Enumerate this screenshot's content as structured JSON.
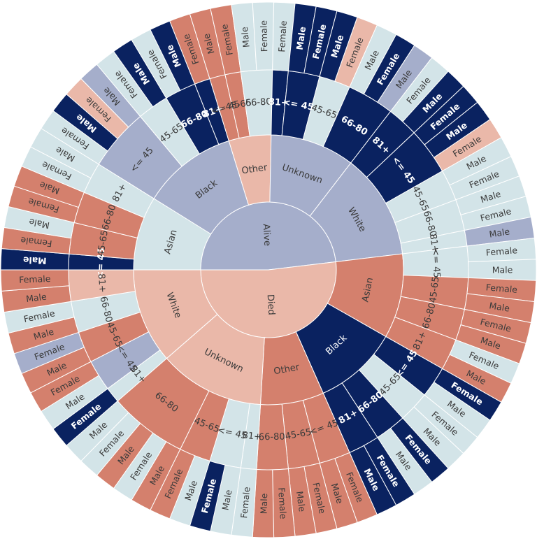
{
  "chart_data": {
    "type": "sunburst",
    "title": "",
    "level_order": [
      "status",
      "race",
      "age",
      "sex"
    ],
    "colors": {
      "navy": "#0a2260",
      "terracotta": "#d4806d",
      "lightblue": "#d3e4e8",
      "lavender": "#a5aecb",
      "peach": "#eab8a9",
      "white": "#ffffff"
    },
    "root": [
      {
        "label": "Alive",
        "color": "lavender",
        "children": [
          {
            "label": "Asian",
            "color": "lightblue",
            "children": [
              {
                "label": "<= 45",
                "color": "navy",
                "children": [
                  {
                    "label": "Male",
                    "value": 1,
                    "color": "navy"
                  }
                ]
              },
              {
                "label": "45-65",
                "color": "terracotta",
                "children": [
                  {
                    "label": "Female",
                    "value": 1,
                    "color": "terracotta"
                  },
                  {
                    "label": "Male",
                    "value": 1,
                    "color": "lightblue"
                  }
                ]
              },
              {
                "label": "66-80",
                "color": "terracotta",
                "children": [
                  {
                    "label": "Female",
                    "value": 1,
                    "color": "terracotta"
                  },
                  {
                    "label": "Male",
                    "value": 1,
                    "color": "terracotta"
                  }
                ]
              },
              {
                "label": "81+",
                "color": "lightblue",
                "children": [
                  {
                    "label": "Female",
                    "value": 1,
                    "color": "lightblue"
                  },
                  {
                    "label": "Male",
                    "value": 1,
                    "color": "lightblue"
                  }
                ]
              }
            ]
          },
          {
            "label": "Black",
            "color": "lavender",
            "children": [
              {
                "label": "<= 45",
                "color": "lavender",
                "children": [
                  {
                    "label": "Female",
                    "value": 1,
                    "color": "lightblue"
                  },
                  {
                    "label": "Male",
                    "value": 1,
                    "color": "navy"
                  },
                  {
                    "label": "Female",
                    "value": 1,
                    "color": "peach"
                  },
                  {
                    "label": "Male",
                    "value": 1,
                    "color": "lavender"
                  }
                ]
              },
              {
                "label": "45-65",
                "color": "lightblue",
                "children": [
                  {
                    "label": "Female",
                    "value": 1,
                    "color": "lightblue"
                  },
                  {
                    "label": "Male",
                    "value": 1,
                    "color": "navy"
                  }
                ]
              },
              {
                "label": "66-80",
                "color": "navy",
                "children": [
                  {
                    "label": "Female",
                    "value": 1,
                    "color": "lightblue"
                  },
                  {
                    "label": "Male",
                    "value": 1,
                    "color": "navy"
                  }
                ]
              },
              {
                "label": "81+",
                "color": "navy",
                "children": [
                  {
                    "label": "Female",
                    "value": 1,
                    "color": "terracotta"
                  }
                ]
              }
            ]
          },
          {
            "label": "Other",
            "color": "peach",
            "children": [
              {
                "label": "<= 45",
                "color": "terracotta",
                "children": [
                  {
                    "label": "Male",
                    "value": 1,
                    "color": "terracotta"
                  }
                ]
              },
              {
                "label": "45-65",
                "color": "terracotta",
                "children": [
                  {
                    "label": "Female",
                    "value": 1,
                    "color": "terracotta"
                  }
                ]
              },
              {
                "label": "66-80",
                "color": "lightblue",
                "children": [
                  {
                    "label": "Male",
                    "value": 1,
                    "color": "lightblue"
                  },
                  {
                    "label": "Female",
                    "value": 1,
                    "color": "lightblue"
                  }
                ]
              }
            ]
          },
          {
            "label": "Unknown",
            "color": "lavender",
            "children": [
              {
                "label": "81+",
                "color": "navy",
                "children": [
                  {
                    "label": "Female",
                    "value": 1,
                    "color": "lightblue"
                  }
                ]
              },
              {
                "label": "<= 45",
                "color": "navy",
                "children": [
                  {
                    "label": "Male",
                    "value": 1,
                    "color": "navy"
                  },
                  {
                    "label": "Female",
                    "value": 1,
                    "color": "navy"
                  }
                ]
              },
              {
                "label": "45-65",
                "color": "lightblue",
                "children": [
                  {
                    "label": "Male",
                    "value": 1,
                    "color": "navy"
                  },
                  {
                    "label": "Female",
                    "value": 1,
                    "color": "peach"
                  }
                ]
              },
              {
                "label": "66-80",
                "color": "navy",
                "children": [
                  {
                    "label": "Male",
                    "value": 1,
                    "color": "lightblue"
                  },
                  {
                    "label": "Female",
                    "value": 1,
                    "color": "navy"
                  },
                  {
                    "label": "Male",
                    "value": 1,
                    "color": "lavender"
                  }
                ]
              }
            ]
          },
          {
            "label": "White",
            "color": "lavender",
            "children": [
              {
                "label": "81+",
                "color": "navy",
                "children": [
                  {
                    "label": "Female",
                    "value": 1,
                    "color": "lightblue"
                  },
                  {
                    "label": "Male",
                    "value": 1,
                    "color": "navy"
                  }
                ]
              },
              {
                "label": "<= 45",
                "color": "navy",
                "children": [
                  {
                    "label": "Female",
                    "value": 1,
                    "color": "navy"
                  },
                  {
                    "label": "Male",
                    "value": 1,
                    "color": "navy"
                  },
                  {
                    "label": "Female",
                    "value": 1,
                    "color": "peach"
                  }
                ]
              },
              {
                "label": "45-65",
                "color": "lightblue",
                "children": [
                  {
                    "label": "Male",
                    "value": 1,
                    "color": "lightblue"
                  },
                  {
                    "label": "Female",
                    "value": 1,
                    "color": "lightblue"
                  }
                ]
              },
              {
                "label": "66-80",
                "color": "lightblue",
                "children": [
                  {
                    "label": "Male",
                    "value": 1,
                    "color": "lightblue"
                  },
                  {
                    "label": "Female",
                    "value": 1,
                    "color": "lightblue"
                  }
                ]
              },
              {
                "label": "81+",
                "color": "lightblue",
                "children": [
                  {
                    "label": "Male",
                    "value": 1,
                    "color": "lavender"
                  }
                ]
              }
            ]
          }
        ]
      },
      {
        "label": "Died",
        "color": "peach",
        "children": [
          {
            "label": "Asian",
            "color": "terracotta",
            "children": [
              {
                "label": "<= 45",
                "color": "lightblue",
                "children": [
                  {
                    "label": "Female",
                    "value": 1,
                    "color": "lightblue"
                  },
                  {
                    "label": "Male",
                    "value": 1,
                    "color": "lightblue"
                  }
                ]
              },
              {
                "label": "45-65",
                "color": "terracotta",
                "children": [
                  {
                    "label": "Female",
                    "value": 1,
                    "color": "terracotta"
                  },
                  {
                    "label": "Male",
                    "value": 1,
                    "color": "terracotta"
                  }
                ]
              },
              {
                "label": "66-80",
                "color": "terracotta",
                "children": [
                  {
                    "label": "Female",
                    "value": 1,
                    "color": "terracotta"
                  },
                  {
                    "label": "Male",
                    "value": 1,
                    "color": "terracotta"
                  }
                ]
              },
              {
                "label": "81+",
                "color": "terracotta",
                "children": [
                  {
                    "label": "Female",
                    "value": 1,
                    "color": "lightblue"
                  },
                  {
                    "label": "Male",
                    "value": 1,
                    "color": "terracotta"
                  }
                ]
              }
            ]
          },
          {
            "label": "Black",
            "color": "navy",
            "children": [
              {
                "label": "<= 45",
                "color": "navy",
                "children": [
                  {
                    "label": "Female",
                    "value": 1,
                    "color": "navy"
                  },
                  {
                    "label": "Male",
                    "value": 1,
                    "color": "lightblue"
                  }
                ]
              },
              {
                "label": "45-65",
                "color": "lightblue",
                "children": [
                  {
                    "label": "Female",
                    "value": 1,
                    "color": "lightblue"
                  },
                  {
                    "label": "Male",
                    "value": 1,
                    "color": "lightblue"
                  }
                ]
              },
              {
                "label": "66-80",
                "color": "navy",
                "children": [
                  {
                    "label": "Female",
                    "value": 1,
                    "color": "navy"
                  },
                  {
                    "label": "Male",
                    "value": 1,
                    "color": "lightblue"
                  }
                ]
              },
              {
                "label": "81+",
                "color": "navy",
                "children": [
                  {
                    "label": "Female",
                    "value": 1,
                    "color": "navy"
                  },
                  {
                    "label": "Male",
                    "value": 1,
                    "color": "navy"
                  }
                ]
              }
            ]
          },
          {
            "label": "Other",
            "color": "terracotta",
            "children": [
              {
                "label": "<= 45",
                "color": "terracotta",
                "children": [
                  {
                    "label": "Female",
                    "value": 1,
                    "color": "terracotta"
                  },
                  {
                    "label": "Male",
                    "value": 1,
                    "color": "terracotta"
                  }
                ]
              },
              {
                "label": "45-65",
                "color": "terracotta",
                "children": [
                  {
                    "label": "Female",
                    "value": 1,
                    "color": "terracotta"
                  },
                  {
                    "label": "Male",
                    "value": 1,
                    "color": "terracotta"
                  }
                ]
              },
              {
                "label": "66-80",
                "color": "terracotta",
                "children": [
                  {
                    "label": "Female",
                    "value": 1,
                    "color": "terracotta"
                  },
                  {
                    "label": "Male",
                    "value": 1,
                    "color": "terracotta"
                  }
                ]
              }
            ]
          },
          {
            "label": "Unknown",
            "color": "peach",
            "children": [
              {
                "label": "81+",
                "color": "lightblue",
                "children": [
                  {
                    "label": "Female",
                    "value": 1,
                    "color": "lightblue"
                  }
                ]
              },
              {
                "label": "<= 45",
                "color": "lightblue",
                "children": [
                  {
                    "label": "Male",
                    "value": 1,
                    "color": "lightblue"
                  },
                  {
                    "label": "Female",
                    "value": 1,
                    "color": "navy"
                  }
                ]
              },
              {
                "label": "45-65",
                "color": "terracotta",
                "children": [
                  {
                    "label": "Male",
                    "value": 1,
                    "color": "lightblue"
                  },
                  {
                    "label": "Female",
                    "value": 1,
                    "color": "terracotta"
                  }
                ]
              },
              {
                "label": "66-80",
                "color": "terracotta",
                "children": [
                  {
                    "label": "Male",
                    "value": 1,
                    "color": "terracotta"
                  },
                  {
                    "label": "Female",
                    "value": 1,
                    "color": "lightblue"
                  },
                  {
                    "label": "Male",
                    "value": 1,
                    "color": "terracotta"
                  },
                  {
                    "label": "Female",
                    "value": 1,
                    "color": "lightblue"
                  },
                  {
                    "label": "Male",
                    "value": 1,
                    "color": "lightblue"
                  }
                ]
              }
            ]
          },
          {
            "label": "White",
            "color": "peach",
            "children": [
              {
                "label": "81+",
                "color": "lightblue",
                "children": [
                  {
                    "label": "Female",
                    "value": 1,
                    "color": "navy"
                  }
                ]
              },
              {
                "label": "<= 45",
                "color": "lavender",
                "children": [
                  {
                    "label": "Male",
                    "value": 1,
                    "color": "lightblue"
                  },
                  {
                    "label": "Female",
                    "value": 1,
                    "color": "terracotta"
                  }
                ]
              },
              {
                "label": "45-65",
                "color": "terracotta",
                "children": [
                  {
                    "label": "Male",
                    "value": 1,
                    "color": "terracotta"
                  },
                  {
                    "label": "Female",
                    "value": 1,
                    "color": "lavender"
                  }
                ]
              },
              {
                "label": "66-80",
                "color": "lightblue",
                "children": [
                  {
                    "label": "Male",
                    "value": 1,
                    "color": "terracotta"
                  },
                  {
                    "label": "Female",
                    "value": 1,
                    "color": "lightblue"
                  }
                ]
              },
              {
                "label": "81+",
                "color": "peach",
                "children": [
                  {
                    "label": "Male",
                    "value": 1,
                    "color": "terracotta"
                  },
                  {
                    "label": "Female",
                    "value": 1,
                    "color": "terracotta"
                  }
                ]
              }
            ]
          }
        ]
      }
    ]
  }
}
